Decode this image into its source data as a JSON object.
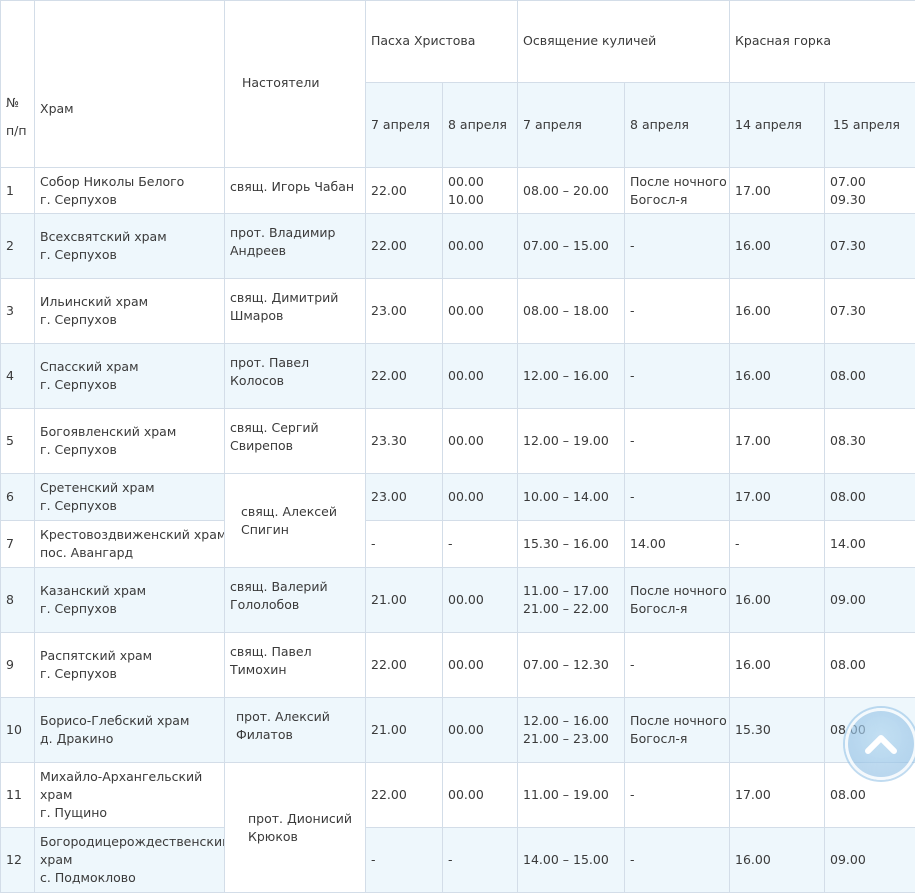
{
  "header": {
    "num_label": "№",
    "num_sub": "п/п",
    "church": "Храм",
    "rectors": "Настоятели",
    "easter": "Пасха Христова",
    "blessing": "Освящение куличей",
    "krasnaya": "Красная горка",
    "dates": [
      "7 апреля",
      "8 апреля",
      "7 апреля",
      "8 апреля",
      "14 апреля",
      "15 апреля"
    ]
  },
  "rows": [
    {
      "n": "1",
      "church": [
        "Собор Николы Белого",
        "г. Серпухов"
      ],
      "rector": [
        "свящ. Игорь Чабан"
      ],
      "e7": [
        "22.00"
      ],
      "e8": [
        "00.00",
        "10.00"
      ],
      "b7": [
        "08.00 – 20.00"
      ],
      "b8": [
        "После ночного",
        "Богосл-я"
      ],
      "k14": [
        "17.00"
      ],
      "k15": [
        "07.00",
        "09.30"
      ]
    },
    {
      "n": "2",
      "church": [
        "Всехсвятский храм",
        "г. Серпухов"
      ],
      "rector": [
        "прот. Владимир",
        "Андреев"
      ],
      "e7": [
        "22.00"
      ],
      "e8": [
        "00.00"
      ],
      "b7": [
        "07.00 – 15.00"
      ],
      "b8": [
        "-"
      ],
      "k14": [
        "16.00"
      ],
      "k15": [
        "07.30"
      ]
    },
    {
      "n": "3",
      "church": [
        "Ильинский храм",
        "г. Серпухов"
      ],
      "rector": [
        "свящ. Димитрий",
        "Шмаров"
      ],
      "e7": [
        "23.00"
      ],
      "e8": [
        "00.00"
      ],
      "b7": [
        "08.00 – 18.00"
      ],
      "b8": [
        "-"
      ],
      "k14": [
        "16.00"
      ],
      "k15": [
        "07.30"
      ]
    },
    {
      "n": "4",
      "church": [
        "Спасский храм",
        "г. Серпухов"
      ],
      "rector": [
        "прот. Павел",
        "Колосов"
      ],
      "e7": [
        "22.00"
      ],
      "e8": [
        "00.00"
      ],
      "b7": [
        "12.00 – 16.00"
      ],
      "b8": [
        "-"
      ],
      "k14": [
        "16.00"
      ],
      "k15": [
        "08.00"
      ]
    },
    {
      "n": "5",
      "church": [
        "Богоявленский храм",
        "г. Серпухов"
      ],
      "rector": [
        "свящ. Сергий",
        "Свирепов"
      ],
      "e7": [
        "23.30"
      ],
      "e8": [
        "00.00"
      ],
      "b7": [
        "12.00 – 19.00"
      ],
      "b8": [
        "-"
      ],
      "k14": [
        "17.00"
      ],
      "k15": [
        "08.30"
      ]
    },
    {
      "n": "6",
      "church": [
        "Сретенский храм",
        "г. Серпухов"
      ],
      "rector": [
        "свящ. Алексей",
        "Спигин"
      ],
      "e7": [
        "23.00"
      ],
      "e8": [
        "00.00"
      ],
      "b7": [
        "10.00 – 14.00"
      ],
      "b8": [
        "-"
      ],
      "k14": [
        "17.00"
      ],
      "k15": [
        "08.00"
      ]
    },
    {
      "n": "7",
      "church": [
        "Крестовоздвиженский храм",
        "пос. Авангард"
      ],
      "e7": [
        "-"
      ],
      "e8": [
        "-"
      ],
      "b7": [
        "15.30 – 16.00"
      ],
      "b8": [
        "14.00"
      ],
      "k14": [
        "-"
      ],
      "k15": [
        "14.00"
      ]
    },
    {
      "n": "8",
      "church": [
        "Казанский храм",
        "г. Серпухов"
      ],
      "rector": [
        "свящ. Валерий",
        "Гололобов"
      ],
      "e7": [
        "21.00"
      ],
      "e8": [
        "00.00"
      ],
      "b7": [
        "11.00 – 17.00",
        "21.00 – 22.00"
      ],
      "b8": [
        "После ночного",
        "Богосл-я"
      ],
      "k14": [
        "16.00"
      ],
      "k15": [
        "09.00"
      ]
    },
    {
      "n": "9",
      "church": [
        "Распятский храм",
        "г. Серпухов"
      ],
      "rector": [
        "свящ.  Павел",
        "Тимохин"
      ],
      "e7": [
        "22.00"
      ],
      "e8": [
        "00.00"
      ],
      "b7": [
        "07.00 – 12.30"
      ],
      "b8": [
        "-"
      ],
      "k14": [
        "16.00"
      ],
      "k15": [
        "08.00"
      ]
    },
    {
      "n": "10",
      "church": [
        "Борисо-Глебский храм",
        "д. Дракино"
      ],
      "rector": [
        "прот. Алексий",
        "Филатов"
      ],
      "e7": [
        "21.00"
      ],
      "e8": [
        "00.00"
      ],
      "b7": [
        "12.00 – 16.00",
        "21.00 – 23.00"
      ],
      "b8": [
        "После ночного",
        "Богосл-я"
      ],
      "k14": [
        "15.30"
      ],
      "k15": [
        "08.00"
      ]
    },
    {
      "n": "11",
      "church": [
        "Михайло-Архангельский",
        "храм",
        "г. Пущино"
      ],
      "rector": [
        "прот. Дионисий",
        "Крюков"
      ],
      "e7": [
        "22.00"
      ],
      "e8": [
        "00.00"
      ],
      "b7": [
        "11.00 – 19.00"
      ],
      "b8": [
        "-"
      ],
      "k14": [
        "17.00"
      ],
      "k15": [
        "08.00"
      ]
    },
    {
      "n": "12",
      "church": [
        "Богородицерождественский",
        "храм",
        "с. Подмоклово"
      ],
      "e7": [
        "-"
      ],
      "e8": [
        "-"
      ],
      "b7": [
        "14.00 – 15.00"
      ],
      "b8": [
        "-"
      ],
      "k14": [
        "16.00"
      ],
      "k15": [
        "09.00"
      ]
    }
  ],
  "scroll_top": {
    "icon": "chevron-up-icon"
  }
}
